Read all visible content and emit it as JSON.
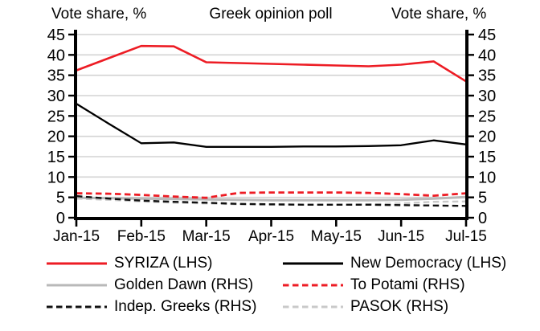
{
  "header": {
    "left_axis_title": "Vote share, %",
    "chart_title": "Greek opinion poll",
    "right_axis_title": "Vote share, %"
  },
  "chart_data": {
    "type": "line",
    "title": "Greek opinion poll",
    "ylabel_left": "Vote share, %",
    "ylabel_right": "Vote share, %",
    "ylim_left": [
      0,
      45
    ],
    "ylim_right": [
      0,
      45
    ],
    "yticks": [
      0,
      5,
      10,
      15,
      20,
      25,
      30,
      35,
      40,
      45
    ],
    "grid": "horizontal",
    "legend_position": "bottom",
    "x_categories": [
      "Jan-15",
      "Feb-15",
      "Mar-15",
      "Apr-15",
      "May-15",
      "Jun-15",
      "Jul-15"
    ],
    "sampling_note": "2 points per month, 13 points Jan-15 through Jul-15",
    "series": [
      {
        "name": "SYRIZA (LHS)",
        "axis": "left",
        "color": "#ed1c24",
        "style": "solid",
        "values": [
          36.2,
          39.2,
          42.2,
          42.1,
          38.2,
          38.0,
          37.8,
          37.6,
          37.4,
          37.2,
          37.6,
          38.4,
          33.5
        ]
      },
      {
        "name": "New Democracy (LHS)",
        "axis": "left",
        "color": "#000000",
        "style": "solid",
        "values": [
          28.0,
          23.1,
          18.3,
          18.5,
          17.4,
          17.4,
          17.4,
          17.5,
          17.5,
          17.6,
          17.8,
          19.0,
          18.0
        ]
      },
      {
        "name": "Golden Dawn (RHS)",
        "axis": "right",
        "color": "#b9b9b9",
        "style": "solid",
        "values": [
          4.9,
          4.8,
          4.7,
          4.6,
          4.5,
          4.4,
          4.3,
          4.3,
          4.3,
          4.3,
          4.4,
          4.7,
          5.1
        ]
      },
      {
        "name": "To Potami (RHS)",
        "axis": "right",
        "color": "#ed1c24",
        "style": "dashed",
        "values": [
          6.0,
          5.9,
          5.6,
          5.2,
          4.9,
          6.1,
          6.2,
          6.2,
          6.2,
          6.1,
          5.8,
          5.4,
          6.0
        ]
      },
      {
        "name": "Indep. Greeks (RHS)",
        "axis": "right",
        "color": "#111111",
        "style": "dashed",
        "values": [
          5.3,
          4.7,
          4.2,
          3.9,
          3.7,
          3.4,
          3.3,
          3.2,
          3.2,
          3.2,
          3.1,
          3.0,
          2.9
        ]
      },
      {
        "name": "PASOK (RHS)",
        "axis": "right",
        "color": "#c9c9c9",
        "style": "dashed",
        "values": [
          4.7,
          4.4,
          4.0,
          3.7,
          3.5,
          3.3,
          3.2,
          3.2,
          3.2,
          3.3,
          3.5,
          3.9,
          4.0
        ]
      }
    ]
  },
  "colors": {
    "axis": "#000000",
    "gridline": "#d3d3d3",
    "text": "#000000",
    "accent_red": "#ed1c24"
  }
}
